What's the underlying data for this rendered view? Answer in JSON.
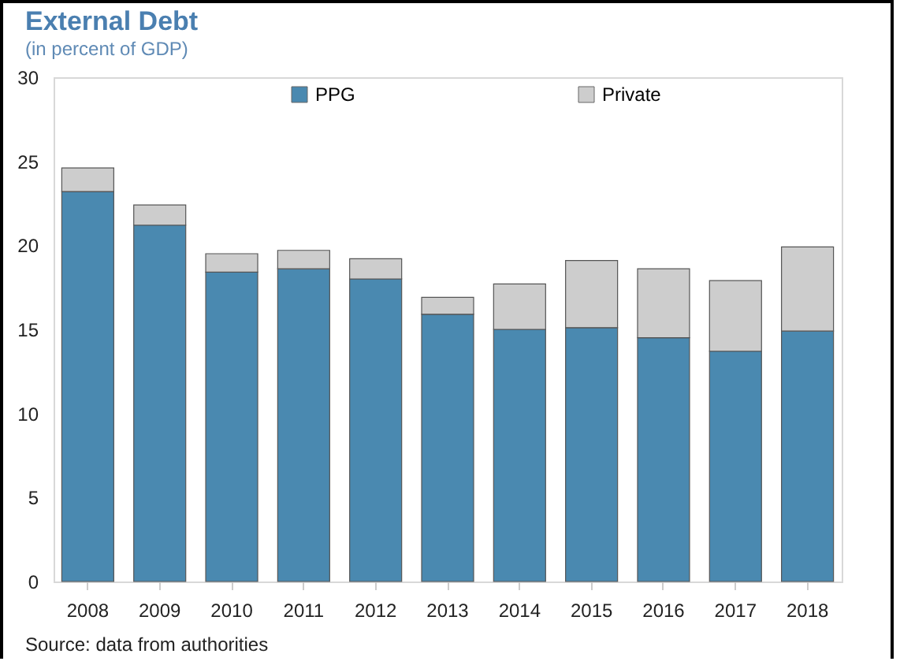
{
  "chart_data": {
    "type": "bar",
    "title": "External Debt",
    "subtitle": "(in percent of GDP)",
    "categories": [
      "2008",
      "2009",
      "2010",
      "2011",
      "2012",
      "2013",
      "2014",
      "2015",
      "2016",
      "2017",
      "2018"
    ],
    "series": [
      {
        "name": "PPG",
        "color": "#4a89b0",
        "values": [
          23.2,
          21.2,
          18.4,
          18.6,
          18.0,
          15.9,
          15.0,
          15.1,
          14.5,
          13.7,
          14.9
        ]
      },
      {
        "name": "Private",
        "color": "#cdcdcd",
        "values": [
          1.4,
          1.2,
          1.1,
          1.1,
          1.2,
          1.0,
          2.7,
          4.0,
          4.1,
          4.2,
          5.0
        ]
      }
    ],
    "stacked": true,
    "ylim": [
      0,
      30
    ],
    "yticks": [
      0,
      5,
      10,
      15,
      20,
      25,
      30
    ],
    "grid": false,
    "legend": "top",
    "annotations": [
      "Source: data from authorities"
    ]
  }
}
